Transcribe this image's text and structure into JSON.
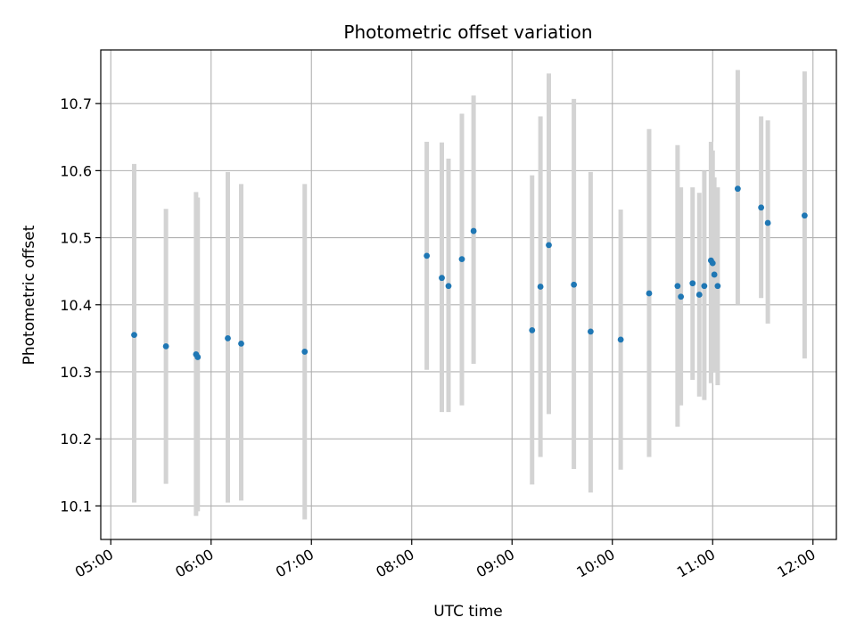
{
  "chart_data": {
    "type": "scatter",
    "title": "Photometric offset variation",
    "xlabel": "UTC time",
    "ylabel": "Photometric offset",
    "grid": true,
    "xlim": [
      "04:54",
      "12:14"
    ],
    "ylim": [
      10.05,
      10.78
    ],
    "x_ticks": [
      "05:00",
      "06:00",
      "07:00",
      "08:00",
      "09:00",
      "10:00",
      "11:00",
      "12:00"
    ],
    "y_ticks": [
      10.1,
      10.2,
      10.3,
      10.4,
      10.5,
      10.6,
      10.7
    ],
    "colors": {
      "points": "#1f77b4",
      "errorbars": "#d3d3d3",
      "grid": "#b0b0b0"
    },
    "series": [
      {
        "points": [
          {
            "x": "05:14",
            "y": 10.355,
            "low": 10.105,
            "high": 10.61
          },
          {
            "x": "05:33",
            "y": 10.338,
            "low": 10.133,
            "high": 10.543
          },
          {
            "x": "05:51",
            "y": 10.326,
            "low": 10.085,
            "high": 10.568
          },
          {
            "x": "05:52",
            "y": 10.322,
            "low": 10.092,
            "high": 10.56
          },
          {
            "x": "06:10",
            "y": 10.35,
            "low": 10.105,
            "high": 10.598
          },
          {
            "x": "06:18",
            "y": 10.342,
            "low": 10.108,
            "high": 10.58
          },
          {
            "x": "06:56",
            "y": 10.33,
            "low": 10.08,
            "high": 10.58
          },
          {
            "x": "08:09",
            "y": 10.473,
            "low": 10.303,
            "high": 10.643
          },
          {
            "x": "08:18",
            "y": 10.44,
            "low": 10.24,
            "high": 10.642
          },
          {
            "x": "08:22",
            "y": 10.428,
            "low": 10.24,
            "high": 10.618
          },
          {
            "x": "08:30",
            "y": 10.468,
            "low": 10.25,
            "high": 10.685
          },
          {
            "x": "08:37",
            "y": 10.51,
            "low": 10.312,
            "high": 10.712
          },
          {
            "x": "09:12",
            "y": 10.362,
            "low": 10.132,
            "high": 10.593
          },
          {
            "x": "09:17",
            "y": 10.427,
            "low": 10.173,
            "high": 10.681
          },
          {
            "x": "09:22",
            "y": 10.489,
            "low": 10.237,
            "high": 10.745
          },
          {
            "x": "09:37",
            "y": 10.43,
            "low": 10.155,
            "high": 10.707
          },
          {
            "x": "09:47",
            "y": 10.36,
            "low": 10.12,
            "high": 10.598
          },
          {
            "x": "10:05",
            "y": 10.348,
            "low": 10.154,
            "high": 10.542
          },
          {
            "x": "10:22",
            "y": 10.417,
            "low": 10.173,
            "high": 10.662
          },
          {
            "x": "10:39",
            "y": 10.428,
            "low": 10.218,
            "high": 10.638
          },
          {
            "x": "10:41",
            "y": 10.412,
            "low": 10.25,
            "high": 10.575
          },
          {
            "x": "10:48",
            "y": 10.432,
            "low": 10.288,
            "high": 10.575
          },
          {
            "x": "10:52",
            "y": 10.415,
            "low": 10.263,
            "high": 10.567
          },
          {
            "x": "10:55",
            "y": 10.428,
            "low": 10.258,
            "high": 10.6
          },
          {
            "x": "10:59",
            "y": 10.466,
            "low": 10.283,
            "high": 10.643
          },
          {
            "x": "11:00",
            "y": 10.462,
            "low": 10.3,
            "high": 10.63
          },
          {
            "x": "11:01",
            "y": 10.445,
            "low": 10.3,
            "high": 10.59
          },
          {
            "x": "11:03",
            "y": 10.428,
            "low": 10.28,
            "high": 10.575
          },
          {
            "x": "11:15",
            "y": 10.573,
            "low": 10.4,
            "high": 10.75
          },
          {
            "x": "11:29",
            "y": 10.545,
            "low": 10.41,
            "high": 10.681
          },
          {
            "x": "11:33",
            "y": 10.522,
            "low": 10.372,
            "high": 10.675
          },
          {
            "x": "11:55",
            "y": 10.533,
            "low": 10.32,
            "high": 10.748
          }
        ]
      }
    ]
  }
}
